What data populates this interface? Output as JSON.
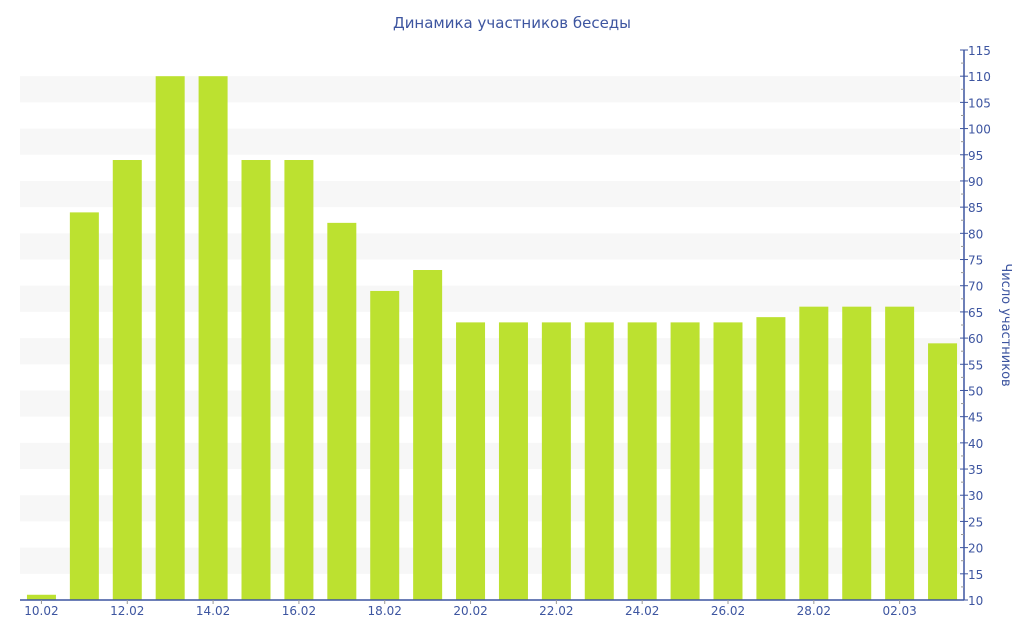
{
  "chart_data": {
    "type": "bar",
    "title": "Динамика участников беседы",
    "xlabel": "",
    "ylabel": "Число участников",
    "ylim": [
      10,
      115
    ],
    "ytick_step": 5,
    "grid": "alternating horizontal bands",
    "y_axis_side": "right",
    "categories": [
      "10.02",
      "11.02",
      "12.02",
      "13.02",
      "14.02",
      "15.02",
      "16.02",
      "17.02",
      "18.02",
      "19.02",
      "20.02",
      "21.02",
      "22.02",
      "23.02",
      "24.02",
      "25.02",
      "26.02",
      "27.02",
      "28.02",
      "01.03",
      "02.03",
      "03.03"
    ],
    "x_tick_labels": [
      "10.02",
      "12.02",
      "14.02",
      "16.02",
      "18.02",
      "20.02",
      "22.02",
      "24.02",
      "26.02",
      "28.02",
      "02.03"
    ],
    "values": [
      11,
      84,
      94,
      110,
      110,
      94,
      94,
      82,
      69,
      73,
      63,
      63,
      63,
      63,
      63,
      63,
      63,
      64,
      66,
      66,
      66,
      59
    ],
    "colors": {
      "bar": "#bce130",
      "axis": "#3d55a0",
      "band": "#f7f7f7"
    }
  }
}
